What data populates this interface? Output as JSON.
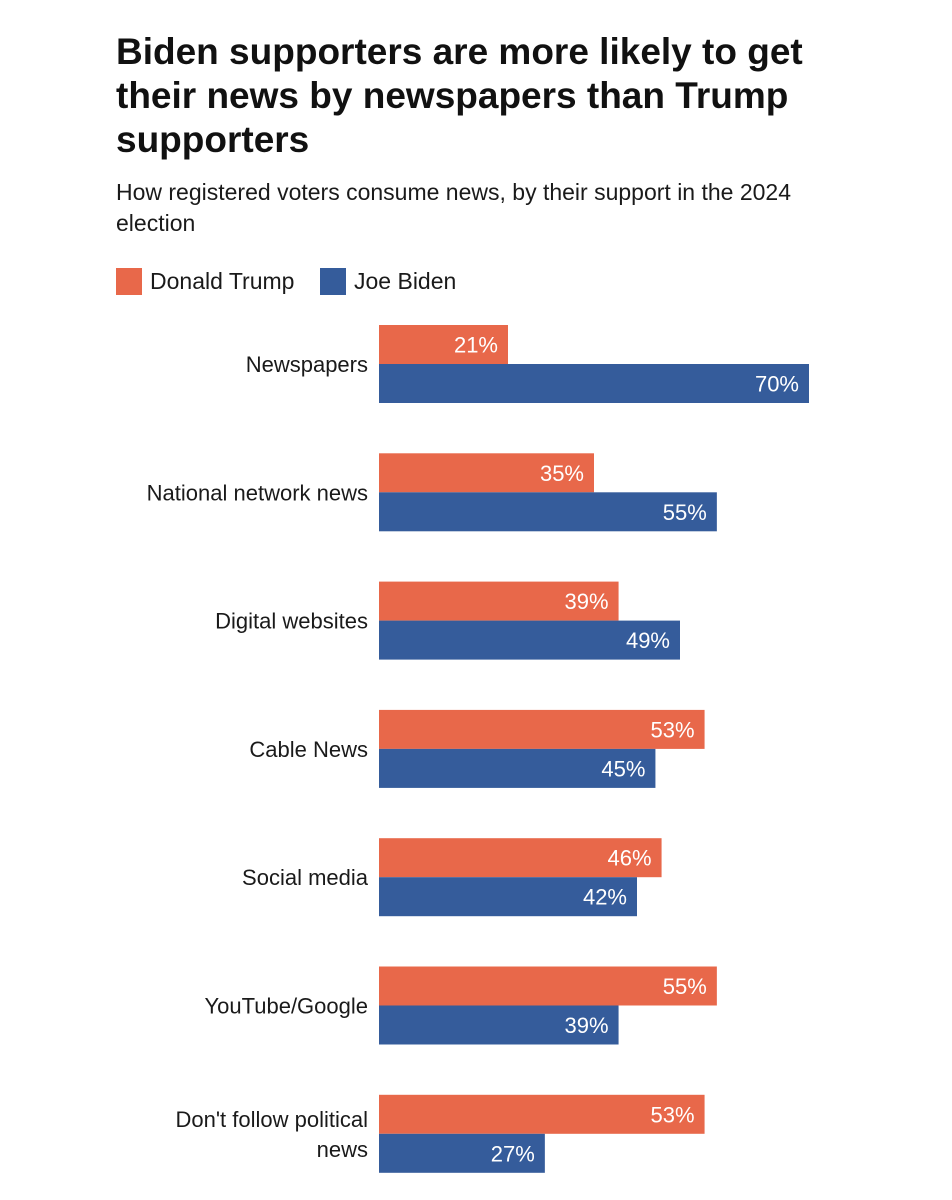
{
  "chart_data": {
    "type": "bar",
    "orientation": "horizontal",
    "title": "Biden supporters are more likely to get their news by newspapers than Trump supporters",
    "subtitle": "How registered voters consume news, by their support in the 2024 election",
    "categories": [
      [
        "Newspapers"
      ],
      [
        "National network news"
      ],
      [
        "Digital websites"
      ],
      [
        "Cable News"
      ],
      [
        "Social media"
      ],
      [
        "YouTube/Google"
      ],
      [
        "Don't follow political",
        "news"
      ]
    ],
    "series": [
      {
        "name": "Donald Trump",
        "color": "#e8684a",
        "values": [
          21,
          35,
          39,
          53,
          46,
          55,
          53
        ]
      },
      {
        "name": "Joe Biden",
        "color": "#355c9b",
        "values": [
          70,
          55,
          49,
          45,
          42,
          39,
          27
        ]
      }
    ],
    "value_suffix": "%",
    "xlim": [
      0,
      70
    ],
    "grid": false,
    "legend": "top-left"
  }
}
